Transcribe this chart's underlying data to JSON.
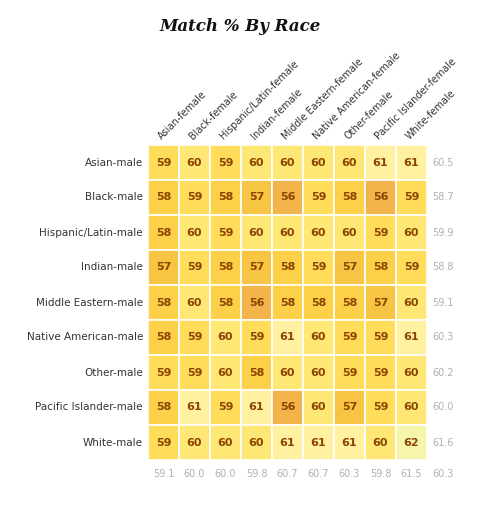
{
  "title": "Match % By Race",
  "row_labels": [
    "Asian-male",
    "Black-male",
    "Hispanic/Latin-male",
    "Indian-male",
    "Middle Eastern-male",
    "Native American-male",
    "Other-male",
    "Pacific Islander-male",
    "White-male"
  ],
  "col_labels": [
    "Asian-female",
    "Black-female",
    "Hispanic/Latin-female",
    "Indian-female",
    "Middle Eastern-female",
    "Native American-female",
    "Other-female",
    "Pacific Islander-female",
    "White-female"
  ],
  "values": [
    [
      59,
      60,
      59,
      60,
      60,
      60,
      60,
      61,
      61
    ],
    [
      58,
      59,
      58,
      57,
      56,
      59,
      58,
      56,
      59
    ],
    [
      58,
      60,
      59,
      60,
      60,
      60,
      60,
      59,
      60
    ],
    [
      57,
      59,
      58,
      57,
      58,
      59,
      57,
      58,
      59
    ],
    [
      58,
      60,
      58,
      56,
      58,
      58,
      58,
      57,
      60
    ],
    [
      58,
      59,
      60,
      59,
      61,
      60,
      59,
      59,
      61
    ],
    [
      59,
      59,
      60,
      58,
      60,
      60,
      59,
      59,
      60
    ],
    [
      58,
      61,
      59,
      61,
      56,
      60,
      57,
      59,
      60
    ],
    [
      59,
      60,
      60,
      60,
      61,
      61,
      61,
      60,
      62
    ]
  ],
  "row_avgs": [
    60.5,
    58.7,
    59.9,
    58.8,
    59.1,
    60.3,
    60.2,
    60.0,
    61.6
  ],
  "col_avgs": [
    59.1,
    60.0,
    60.0,
    59.8,
    60.7,
    60.7,
    60.3,
    59.8,
    61.5,
    60.3
  ],
  "vmin": 55,
  "vmax": 63,
  "cell_text_color": "#8B4500",
  "avg_text_color": "#b0b0b0",
  "background_color": "#ffffff",
  "title_color": "#111111",
  "row_label_color": "#333333",
  "col_label_color": "#333333",
  "cmap_colors": [
    [
      0.0,
      "#f0a060"
    ],
    [
      0.2,
      "#f5c040"
    ],
    [
      0.45,
      "#ffd84d"
    ],
    [
      0.65,
      "#ffe97a"
    ],
    [
      0.8,
      "#fff5b0"
    ],
    [
      1.0,
      "#e8f5a0"
    ]
  ]
}
